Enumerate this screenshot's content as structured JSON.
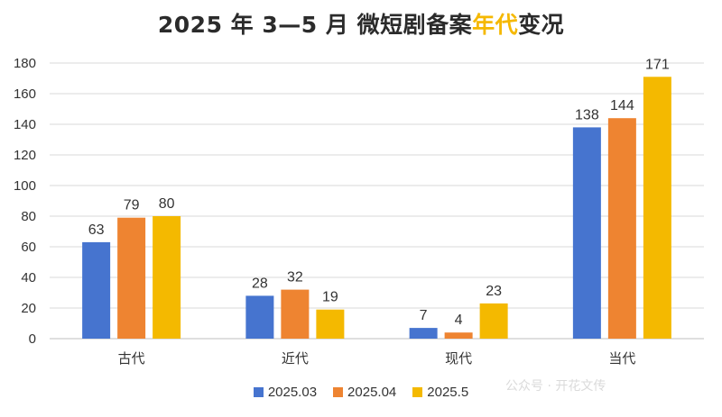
{
  "title": {
    "prefix": "2025 年 3—5 月 微短剧备案",
    "highlight": "年代",
    "suffix": "变况"
  },
  "watermark": "公众号 · 开花文传",
  "colors": {
    "series": [
      "#4674cf",
      "#ee8431",
      "#f4b900"
    ],
    "grid": "#d9d9d9",
    "title_highlight": "#f5b800"
  },
  "chart_data": {
    "type": "bar",
    "title": "2025 年 3—5 月 微短剧备案年代变况",
    "xlabel": "",
    "ylabel": "",
    "categories": [
      "古代",
      "近代",
      "现代",
      "当代"
    ],
    "series": [
      {
        "name": "2025.03",
        "values": [
          63,
          28,
          7,
          138
        ]
      },
      {
        "name": "2025.04",
        "values": [
          79,
          32,
          4,
          144
        ]
      },
      {
        "name": "2025.5",
        "values": [
          80,
          19,
          23,
          171
        ]
      }
    ],
    "ylim": [
      0,
      180
    ],
    "yticks": [
      0,
      20,
      40,
      60,
      80,
      100,
      120,
      140,
      160,
      180
    ],
    "grid": true,
    "legend": "bottom",
    "data_labels": true
  }
}
